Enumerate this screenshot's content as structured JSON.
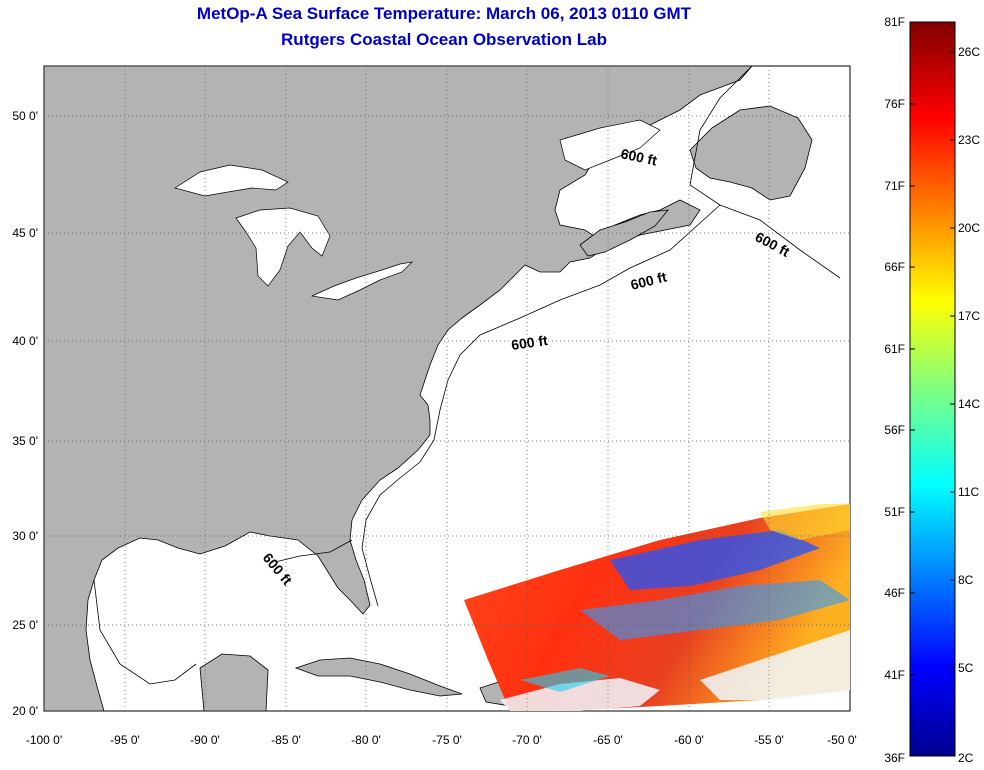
{
  "title": "MetOp-A Sea Surface Temperature:  March 06, 2013 0110 GMT",
  "subtitle": "Rutgers Coastal Ocean Observation Lab",
  "map": {
    "lon_range": [
      -100,
      -50
    ],
    "lat_range": [
      20,
      52
    ],
    "x_ticks": [
      "-100 0'",
      "-95 0'",
      "-90 0'",
      "-85 0'",
      "-80 0'",
      "-75 0'",
      "-70 0'",
      "-65 0'",
      "-60 0'",
      "-55 0'",
      "-50 0'"
    ],
    "y_ticks": [
      "50 0'",
      "45 0'",
      "40 0'",
      "35 0'",
      "30 0'",
      "25 0'",
      "20 0'"
    ],
    "depth_labels": [
      "600 ft",
      "600 ft",
      "600 ft",
      "600 ft",
      "600 ft"
    ],
    "land_color": "#b3b3b3",
    "grid": "dotted"
  },
  "colorbar": {
    "f_labels": [
      "81F",
      "76F",
      "71F",
      "66F",
      "61F",
      "56F",
      "51F",
      "46F",
      "41F",
      "36F"
    ],
    "c_labels": [
      "26C",
      "23C",
      "20C",
      "17C",
      "14C",
      "11C",
      "8C",
      "5C",
      "2C"
    ]
  }
}
